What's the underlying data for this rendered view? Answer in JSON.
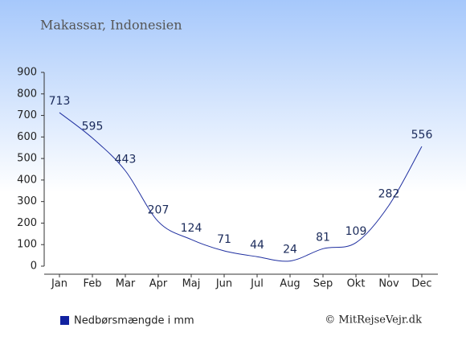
{
  "chart_data": {
    "type": "line",
    "title": "Makassar, Indonesien",
    "categories": [
      "Jan",
      "Feb",
      "Mar",
      "Apr",
      "Maj",
      "Jun",
      "Jul",
      "Aug",
      "Sep",
      "Okt",
      "Nov",
      "Dec"
    ],
    "series": [
      {
        "name": "Nedbørsmængde i mm",
        "color": "#1f2fa0",
        "values": [
          713,
          595,
          443,
          207,
          124,
          71,
          44,
          24,
          81,
          109,
          282,
          556
        ]
      }
    ],
    "ylim": [
      0,
      900
    ],
    "yticks": [
      0,
      100,
      200,
      300,
      400,
      500,
      600,
      700,
      800,
      900
    ],
    "legend": "bottom-left",
    "copyright": "© MitRejseVejr.dk"
  }
}
